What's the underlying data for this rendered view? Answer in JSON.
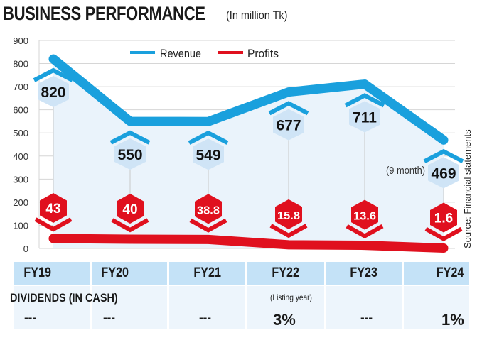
{
  "chart_data": {
    "type": "line",
    "title": "BUSINESS PERFORMANCE",
    "subtitle": "(In million Tk)",
    "categories": [
      "FY19",
      "FY20",
      "FY21",
      "FY22",
      "FY23",
      "FY24"
    ],
    "series": [
      {
        "name": "Revenue",
        "color": "#1aa0dd",
        "values": [
          820,
          550,
          549,
          677,
          711,
          469
        ],
        "labels": [
          "820",
          "550",
          "549",
          "677",
          "711",
          "469"
        ]
      },
      {
        "name": "Profits",
        "color": "#e0101e",
        "values": [
          43,
          40,
          38.8,
          15.8,
          13.6,
          1.6
        ],
        "labels": [
          "43",
          "40",
          "38.8",
          "15.8",
          "13.6",
          "1.6"
        ]
      }
    ],
    "yticks": [
      "0",
      "100",
      "200",
      "300",
      "400",
      "500",
      "600",
      "700",
      "800",
      "900"
    ],
    "ylim": [
      0,
      900
    ],
    "grid": true,
    "legend": "top-center",
    "annotation": "(9 month)",
    "source": "Source: Financial statements"
  },
  "table": {
    "years": [
      "FY19",
      "FY20",
      "FY21",
      "FY22",
      "FY23",
      "FY24"
    ],
    "row_label": "DIVIDENDS (IN CASH)",
    "note": "(Listing year)",
    "values": [
      "---",
      "---",
      "---",
      "3%",
      "---",
      "1%"
    ]
  }
}
